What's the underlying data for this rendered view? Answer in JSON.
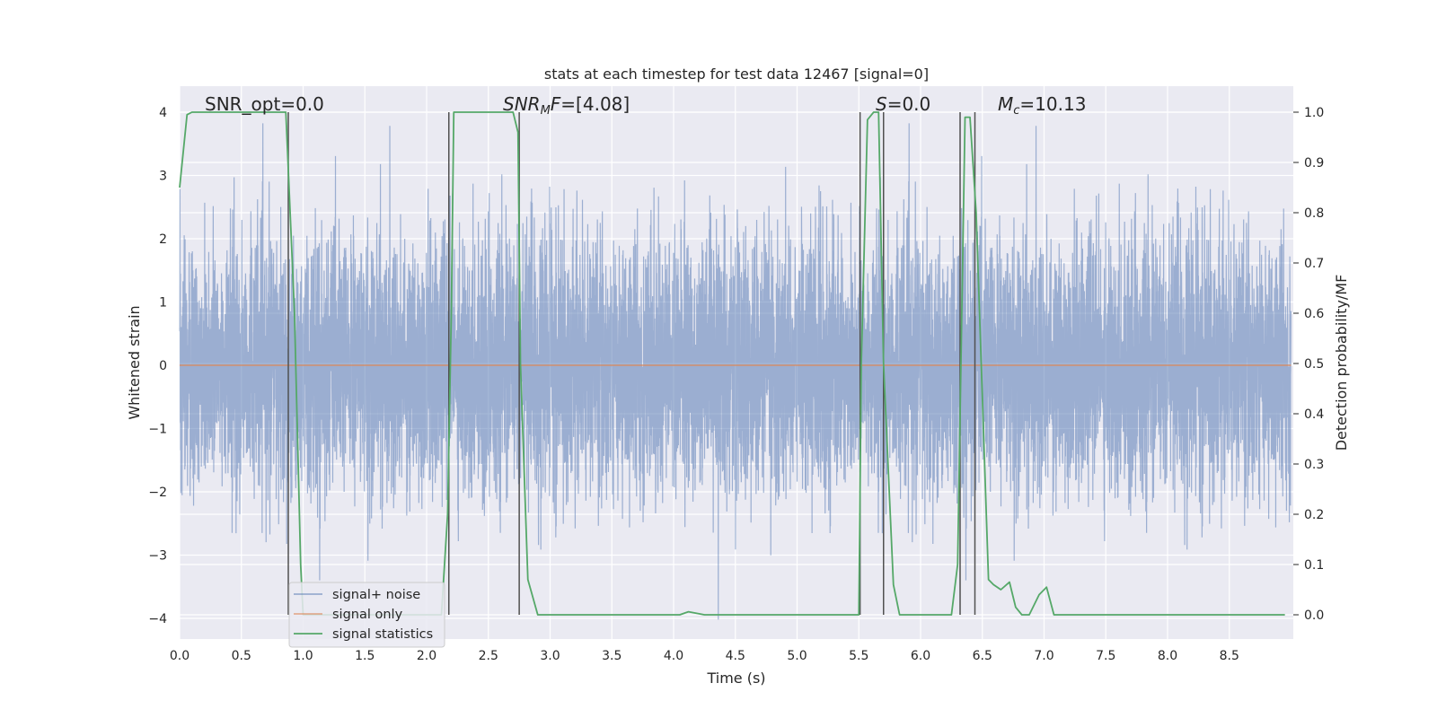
{
  "chart_data": {
    "type": "line",
    "title": "stats at each timestep for test data 12467 [signal=0]",
    "xlabel": "Time (s)",
    "ylabel": "Whitened strain",
    "y2label": "Detection probability/MF",
    "xlim": [
      0.0,
      9.0
    ],
    "ylim": [
      -4.4,
      4.4
    ],
    "y2lim": [
      -0.05,
      1.05
    ],
    "xticks": [
      "0.0",
      "0.5",
      "1.0",
      "1.5",
      "2.0",
      "2.5",
      "3.0",
      "3.5",
      "4.0",
      "4.5",
      "5.0",
      "5.5",
      "6.0",
      "6.5",
      "7.0",
      "7.5",
      "8.0",
      "8.5"
    ],
    "yticks": [
      "4",
      "3",
      "2",
      "1",
      "0",
      "−1",
      "−2",
      "−3",
      "−4"
    ],
    "y2ticks": [
      "1.0",
      "0.9",
      "0.8",
      "0.7",
      "0.6",
      "0.5",
      "0.4",
      "0.3",
      "0.2",
      "0.1",
      "0.0"
    ],
    "grid": true,
    "legend_position": "lower-left",
    "annotations": {
      "snr_opt": "SNR_opt=0.0",
      "snr_mf_italic": "SNR",
      "snr_mf_sub": "M",
      "snr_mf_rest_italic": "F",
      "snr_mf_value": "=[4.08]",
      "s_italic": "S",
      "s_value": "=0.0",
      "mc_italic": "M",
      "mc_sub": "c",
      "mc_value": "=10.13"
    },
    "vertical_lines_x": [
      0.88,
      2.18,
      2.75,
      5.51,
      5.7,
      6.32,
      6.44
    ],
    "series": [
      {
        "name": "signal+ noise",
        "color": "#4c72b0",
        "axis": "left",
        "note_values": "dense whitened noise, roughly uniform within +/-2.2 with peaks reaching about +/-4"
      },
      {
        "name": "signal only",
        "color": "#dd8452",
        "axis": "left",
        "x": [
          0.0,
          9.0
        ],
        "values": [
          0.0,
          0.0
        ]
      },
      {
        "name": "signal statistics",
        "color": "#55a868",
        "axis": "right",
        "x": [
          0.0,
          0.06,
          0.1,
          0.2,
          0.5,
          0.8,
          0.86,
          0.93,
          0.98,
          1.0,
          2.12,
          2.17,
          2.2,
          2.22,
          2.4,
          2.6,
          2.7,
          2.74,
          2.76,
          2.82,
          2.9,
          3.2,
          3.5,
          3.8,
          4.05,
          4.12,
          4.25,
          4.5,
          5.0,
          5.5,
          5.52,
          5.57,
          5.62,
          5.66,
          5.7,
          5.78,
          5.83,
          5.9,
          6.0,
          6.1,
          6.25,
          6.3,
          6.36,
          6.4,
          6.45,
          6.55,
          6.59,
          6.65,
          6.72,
          6.77,
          6.82,
          6.88,
          6.96,
          7.02,
          7.08,
          7.2,
          7.5,
          8.0,
          8.5,
          8.95
        ],
        "values": [
          0.85,
          0.995,
          1.0,
          1.0,
          1.0,
          1.0,
          1.0,
          0.6,
          0.1,
          0.0,
          0.0,
          0.2,
          0.6,
          1.0,
          1.0,
          1.0,
          1.0,
          0.96,
          0.5,
          0.07,
          0.0,
          0.0,
          0.0,
          0.0,
          0.0,
          0.006,
          0.0,
          0.0,
          0.0,
          0.0,
          0.5,
          0.985,
          1.0,
          1.0,
          0.5,
          0.06,
          0.0,
          0.0,
          0.0,
          0.0,
          0.0,
          0.1,
          0.99,
          0.99,
          0.8,
          0.07,
          0.06,
          0.05,
          0.065,
          0.015,
          0.0,
          0.0,
          0.04,
          0.055,
          0.0,
          0.0,
          0.0,
          0.0,
          0.0,
          0.0
        ]
      }
    ]
  },
  "colors": {
    "plot_bg": "#eaeaf2",
    "grid": "#ffffff",
    "vline": "#505050"
  }
}
